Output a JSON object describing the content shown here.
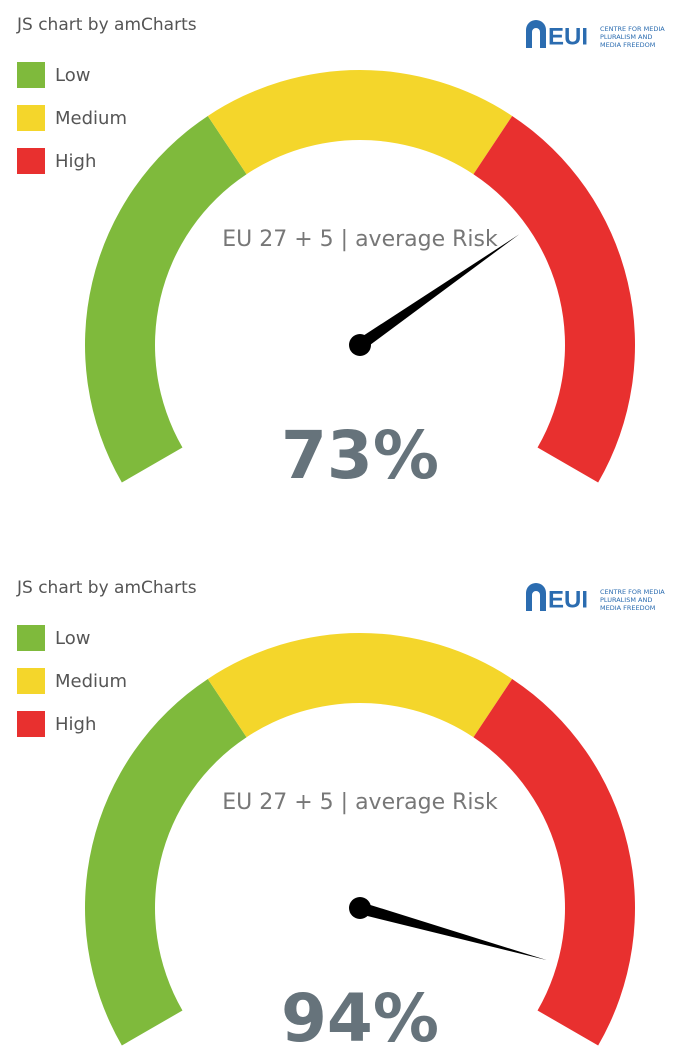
{
  "chart_data": [
    {
      "type": "gauge",
      "credit": "JS chart by amCharts",
      "logo": {
        "text": "EUI",
        "subtitle": [
          "CENTRE FOR MEDIA",
          "PLURALISM AND",
          "MEDIA FREEDOM"
        ]
      },
      "label": "EU 27 + 5 | average Risk",
      "ylim": [
        0,
        100
      ],
      "bands": [
        {
          "name": "Low",
          "color": "#7fba3c",
          "from": 0,
          "to": 36
        },
        {
          "name": "Medium",
          "color": "#f4d62b",
          "from": 36,
          "to": 64
        },
        {
          "name": "High",
          "color": "#e8302f",
          "from": 64,
          "to": 100
        }
      ],
      "value": 73,
      "value_label": "73%"
    },
    {
      "type": "gauge",
      "credit": "JS chart by amCharts",
      "logo": {
        "text": "EUI",
        "subtitle": [
          "CENTRE FOR MEDIA",
          "PLURALISM AND",
          "MEDIA FREEDOM"
        ]
      },
      "label": "EU 27 + 5 | average Risk",
      "ylim": [
        0,
        100
      ],
      "bands": [
        {
          "name": "Low",
          "color": "#7fba3c",
          "from": 0,
          "to": 36
        },
        {
          "name": "Medium",
          "color": "#f4d62b",
          "from": 36,
          "to": 64
        },
        {
          "name": "High",
          "color": "#e8302f",
          "from": 64,
          "to": 100
        }
      ],
      "value": 94,
      "value_label": "94%"
    }
  ]
}
